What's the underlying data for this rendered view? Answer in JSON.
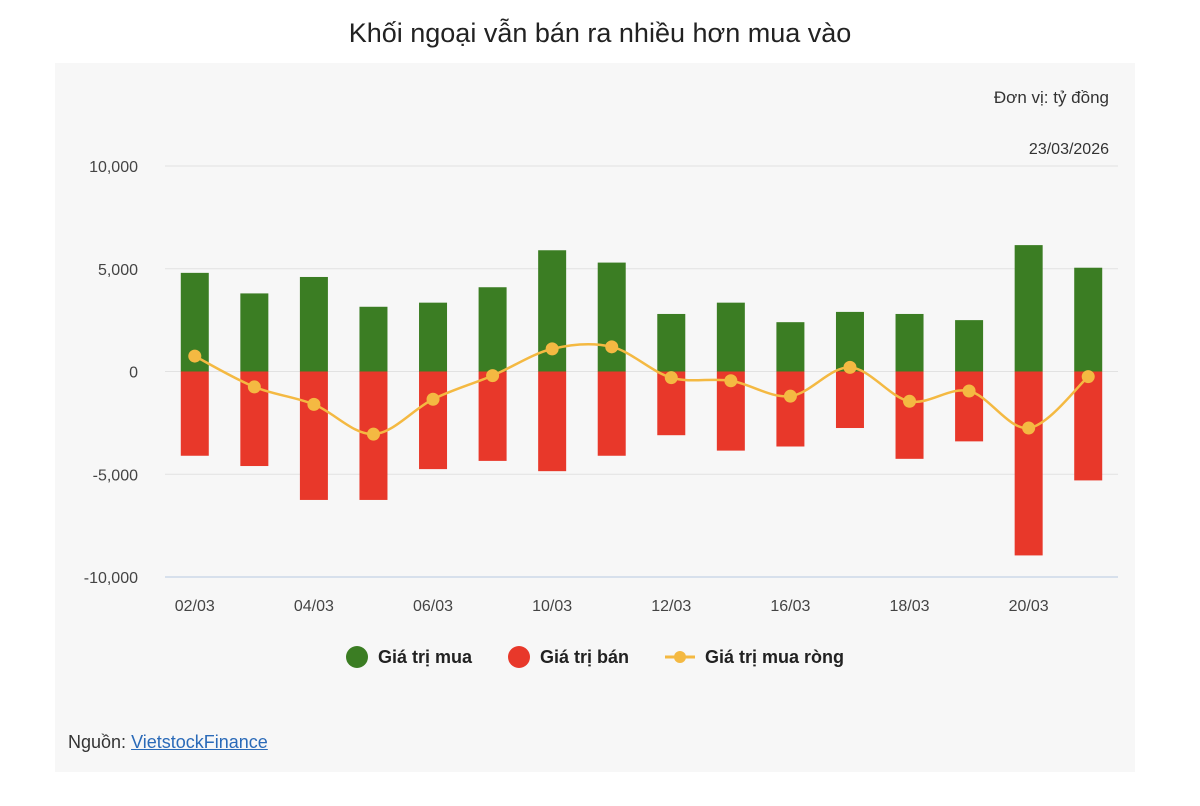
{
  "title": "Khối ngoại vẫn bán ra nhiều hơn mua vào",
  "unit": "Đơn vị: tỷ đồng",
  "date": "23/03/2026",
  "source_label": "Nguồn:",
  "source_link": "VietstockFinance",
  "colors": {
    "buy": "#3b7d23",
    "sell": "#e8382a",
    "net": "#f4b942"
  },
  "chart_data": {
    "type": "bar",
    "title": "Khối ngoại vẫn bán ra nhiều hơn mua vào",
    "ylim": [
      -10000,
      10000
    ],
    "yticks": [
      10000,
      5000,
      0,
      -5000,
      -10000
    ],
    "ytick_labels": [
      "10,000",
      "5,000",
      "0",
      "-5,000",
      "-10,000"
    ],
    "categories": [
      "02/03",
      "",
      "04/03",
      "",
      "06/03",
      "",
      "10/03",
      "",
      "12/03",
      "",
      "16/03",
      "",
      "18/03",
      "",
      "20/03",
      ""
    ],
    "series": [
      {
        "name": "Giá trị mua",
        "type": "bar",
        "values": [
          4800,
          3800,
          4600,
          3150,
          3350,
          4100,
          5900,
          5300,
          2800,
          3350,
          2400,
          2900,
          2800,
          2500,
          6150,
          5050
        ]
      },
      {
        "name": "Giá trị bán",
        "type": "bar",
        "values": [
          -4100,
          -4600,
          -6250,
          -6250,
          -4750,
          -4350,
          -4850,
          -4100,
          -3100,
          -3850,
          -3650,
          -2750,
          -4250,
          -3400,
          -8950,
          -5300
        ]
      },
      {
        "name": "Giá trị mua ròng",
        "type": "line",
        "values": [
          750,
          -750,
          -1600,
          -3050,
          -1350,
          -200,
          1100,
          1200,
          -300,
          -450,
          -1200,
          200,
          -1450,
          -950,
          -2750,
          -250
        ]
      }
    ],
    "legend": "bottom"
  }
}
